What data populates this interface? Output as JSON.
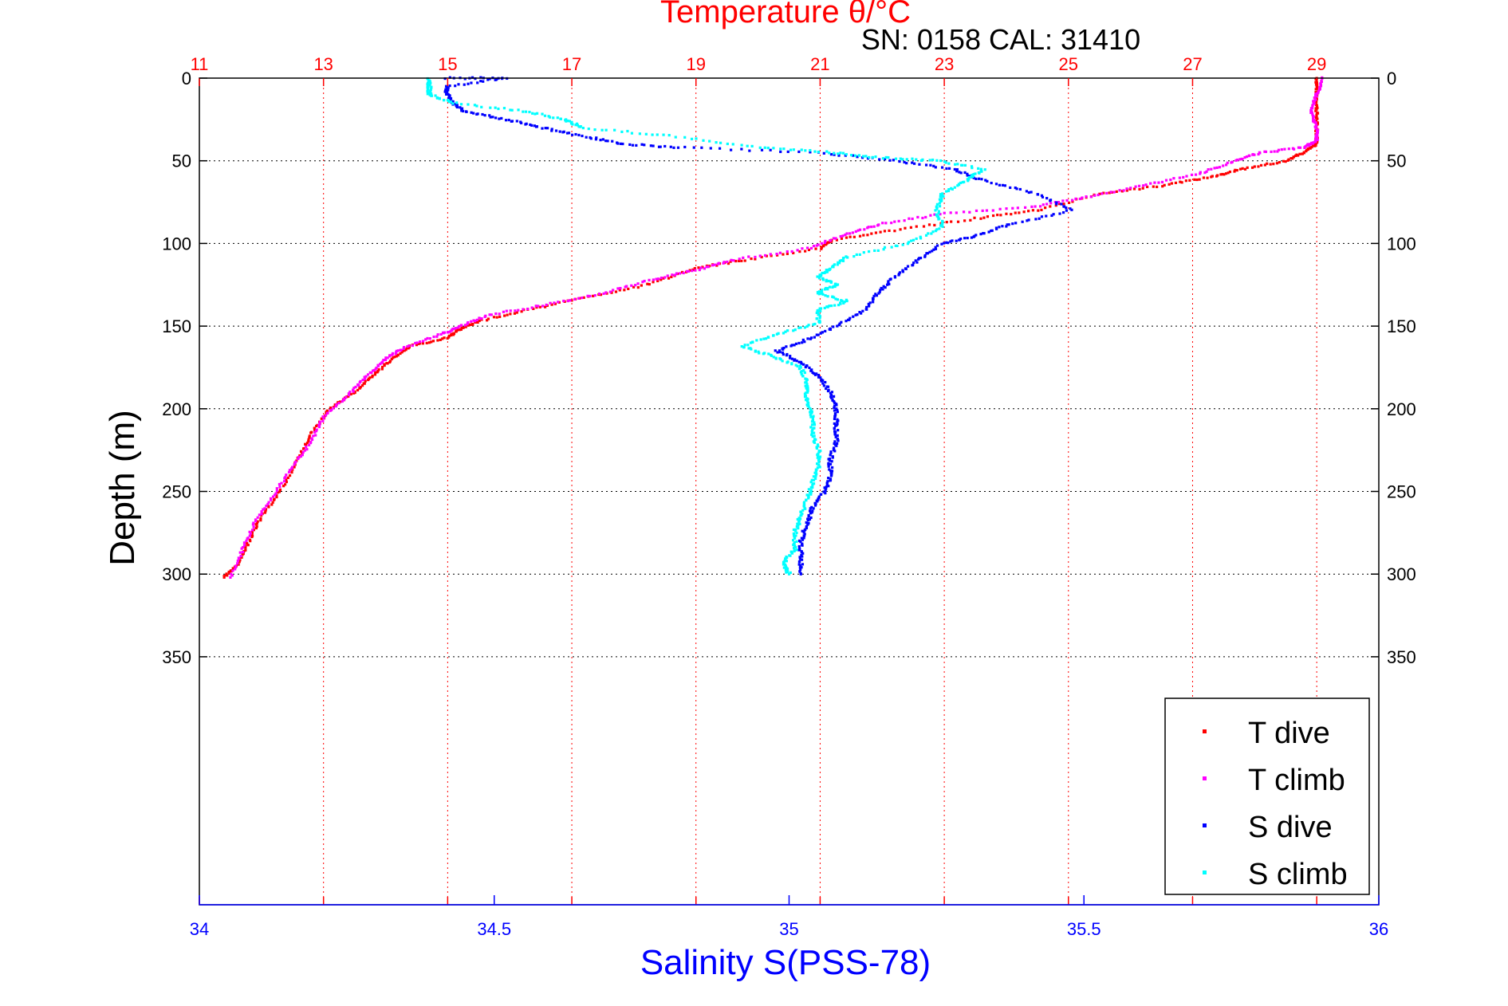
{
  "chart_data": {
    "type": "scatter",
    "title": "Temperature θ/°C",
    "subtitle": "SN: 0158  CAL: 31410",
    "ylabel": "Depth (m)",
    "xlabel": "Salinity S(PSS-78)",
    "y_axis": {
      "range": [
        0,
        500
      ],
      "reversed": true,
      "ticks": [
        0,
        50,
        100,
        150,
        200,
        250,
        300,
        350
      ]
    },
    "x_top": {
      "name": "Temperature",
      "range": [
        11,
        30
      ],
      "ticks": [
        11,
        13,
        15,
        17,
        19,
        21,
        23,
        25,
        27,
        29
      ]
    },
    "x_bottom": {
      "name": "Salinity",
      "range": [
        34,
        36
      ],
      "ticks": [
        34,
        34.5,
        35,
        35.5,
        36
      ]
    },
    "grid": "on",
    "legend_position": "bottom-right",
    "colors": {
      "temperature_axis": "#ff0000",
      "salinity_axis": "#0000ff",
      "t_dive": "#ff0000",
      "t_climb": "#ff00ff",
      "s_dive": "#0000ff",
      "s_climb": "#00ffff"
    },
    "series": [
      {
        "name": "T dive",
        "axis": "temperature",
        "points": [
          [
            29.0,
            0
          ],
          [
            29.0,
            10
          ],
          [
            29.0,
            20
          ],
          [
            29.0,
            30
          ],
          [
            29.0,
            40
          ],
          [
            28.8,
            45
          ],
          [
            28.5,
            50
          ],
          [
            27.8,
            55
          ],
          [
            27.3,
            60
          ],
          [
            26.5,
            65
          ],
          [
            25.5,
            70
          ],
          [
            24.5,
            80
          ],
          [
            23.5,
            85
          ],
          [
            22.2,
            92
          ],
          [
            21.2,
            98
          ],
          [
            21.0,
            103
          ],
          [
            19.8,
            110
          ],
          [
            19.0,
            115
          ],
          [
            18.2,
            125
          ],
          [
            17.2,
            133
          ],
          [
            16.3,
            140
          ],
          [
            15.5,
            147
          ],
          [
            15.2,
            152
          ],
          [
            15.0,
            157
          ],
          [
            14.4,
            162
          ],
          [
            14.1,
            170
          ],
          [
            13.8,
            180
          ],
          [
            13.5,
            190
          ],
          [
            13.1,
            200
          ],
          [
            12.8,
            215
          ],
          [
            12.6,
            230
          ],
          [
            12.3,
            250
          ],
          [
            12.0,
            265
          ],
          [
            11.8,
            280
          ],
          [
            11.6,
            295
          ],
          [
            11.4,
            302
          ]
        ]
      },
      {
        "name": "T climb",
        "axis": "temperature",
        "points": [
          [
            29.1,
            0
          ],
          [
            29.0,
            10
          ],
          [
            28.9,
            20
          ],
          [
            29.0,
            30
          ],
          [
            29.0,
            38
          ],
          [
            28.8,
            42
          ],
          [
            28.1,
            45
          ],
          [
            27.7,
            50
          ],
          [
            27.1,
            58
          ],
          [
            26.2,
            65
          ],
          [
            25.3,
            72
          ],
          [
            24.4,
            78
          ],
          [
            23.0,
            82
          ],
          [
            22.0,
            88
          ],
          [
            21.4,
            95
          ],
          [
            20.8,
            103
          ],
          [
            19.6,
            110
          ],
          [
            19.0,
            116
          ],
          [
            18.3,
            122
          ],
          [
            17.5,
            130
          ],
          [
            16.6,
            137
          ],
          [
            15.7,
            143
          ],
          [
            15.2,
            150
          ],
          [
            14.9,
            155
          ],
          [
            14.3,
            163
          ],
          [
            14.0,
            170
          ],
          [
            13.7,
            180
          ],
          [
            13.4,
            192
          ],
          [
            13.0,
            205
          ],
          [
            12.8,
            220
          ],
          [
            12.5,
            235
          ],
          [
            12.2,
            252
          ],
          [
            11.9,
            268
          ],
          [
            11.7,
            285
          ],
          [
            11.5,
            302
          ]
        ]
      },
      {
        "name": "S dive",
        "axis": "salinity",
        "points": [
          [
            34.42,
            0
          ],
          [
            34.52,
            0
          ],
          [
            34.42,
            5
          ],
          [
            34.42,
            10
          ],
          [
            34.43,
            15
          ],
          [
            34.45,
            20
          ],
          [
            34.52,
            25
          ],
          [
            34.58,
            30
          ],
          [
            34.65,
            35
          ],
          [
            34.72,
            40
          ],
          [
            34.82,
            42
          ],
          [
            35.05,
            45
          ],
          [
            35.18,
            50
          ],
          [
            35.28,
            55
          ],
          [
            35.33,
            62
          ],
          [
            35.42,
            70
          ],
          [
            35.48,
            80
          ],
          [
            35.38,
            88
          ],
          [
            35.32,
            95
          ],
          [
            35.26,
            100
          ],
          [
            35.22,
            110
          ],
          [
            35.18,
            120
          ],
          [
            35.15,
            130
          ],
          [
            35.13,
            140
          ],
          [
            35.08,
            150
          ],
          [
            35.03,
            158
          ],
          [
            34.98,
            165
          ],
          [
            35.02,
            172
          ],
          [
            35.05,
            180
          ],
          [
            35.07,
            190
          ],
          [
            35.08,
            200
          ],
          [
            35.08,
            210
          ],
          [
            35.08,
            220
          ],
          [
            35.07,
            230
          ],
          [
            35.07,
            240
          ],
          [
            35.06,
            250
          ],
          [
            35.04,
            260
          ],
          [
            35.03,
            270
          ],
          [
            35.02,
            280
          ],
          [
            35.02,
            290
          ],
          [
            35.02,
            300
          ]
        ]
      },
      {
        "name": "S climb",
        "axis": "salinity",
        "points": [
          [
            34.39,
            0
          ],
          [
            34.39,
            5
          ],
          [
            34.39,
            10
          ],
          [
            34.43,
            15
          ],
          [
            34.55,
            20
          ],
          [
            34.62,
            25
          ],
          [
            34.65,
            30
          ],
          [
            34.8,
            35
          ],
          [
            34.95,
            42
          ],
          [
            35.07,
            45
          ],
          [
            35.15,
            48
          ],
          [
            35.25,
            50
          ],
          [
            35.33,
            55
          ],
          [
            35.3,
            62
          ],
          [
            35.26,
            70
          ],
          [
            35.25,
            80
          ],
          [
            35.26,
            90
          ],
          [
            35.2,
            100
          ],
          [
            35.1,
            108
          ],
          [
            35.07,
            115
          ],
          [
            35.05,
            120
          ],
          [
            35.08,
            125
          ],
          [
            35.05,
            130
          ],
          [
            35.1,
            135
          ],
          [
            35.05,
            140
          ],
          [
            35.05,
            148
          ],
          [
            34.98,
            155
          ],
          [
            34.92,
            162
          ],
          [
            34.97,
            168
          ],
          [
            35.02,
            175
          ],
          [
            35.03,
            185
          ],
          [
            35.03,
            195
          ],
          [
            35.04,
            205
          ],
          [
            35.04,
            215
          ],
          [
            35.05,
            225
          ],
          [
            35.05,
            235
          ],
          [
            35.04,
            245
          ],
          [
            35.03,
            255
          ],
          [
            35.02,
            265
          ],
          [
            35.01,
            275
          ],
          [
            35.01,
            285
          ],
          [
            34.99,
            293
          ],
          [
            35.0,
            300
          ]
        ]
      }
    ]
  }
}
